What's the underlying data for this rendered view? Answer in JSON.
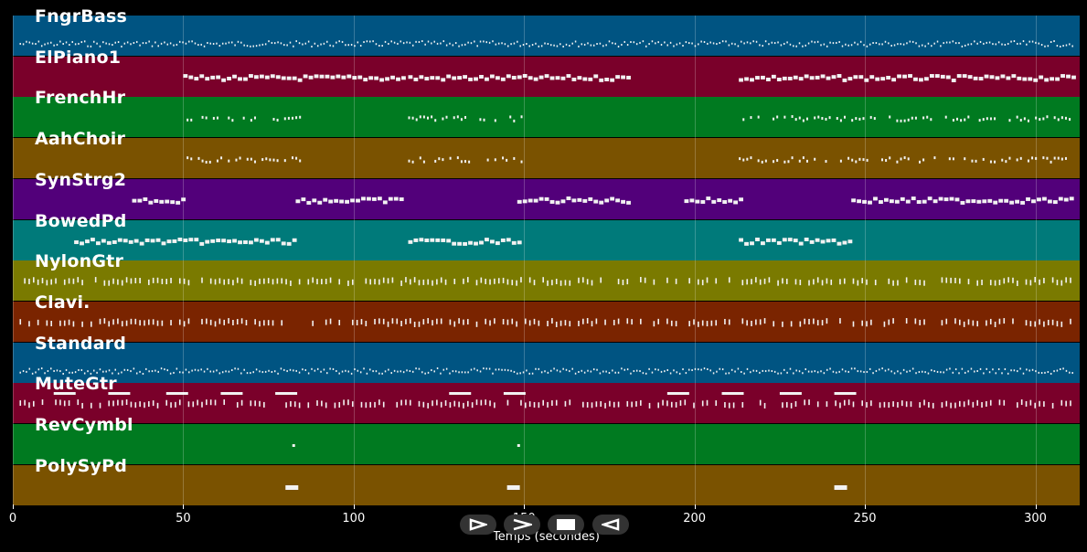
{
  "timeline": {
    "tracks": [
      {
        "name": "FngrBass",
        "color": "#005482",
        "style": "dense"
      },
      {
        "name": "ElPiano1",
        "color": "#7a002a",
        "style": "block"
      },
      {
        "name": "FrenchHr",
        "color": "#007a20",
        "style": "sparse"
      },
      {
        "name": "AahChoir",
        "color": "#7a5200",
        "style": "sparse"
      },
      {
        "name": "SynStrg2",
        "color": "#52007a",
        "style": "block"
      },
      {
        "name": "BowedPd",
        "color": "#007a7a",
        "style": "block"
      },
      {
        "name": "NylonGtr",
        "color": "#7a7a00",
        "style": "ticks"
      },
      {
        "name": "Clavi.",
        "color": "#7a2400",
        "style": "ticks"
      },
      {
        "name": "Standard",
        "color": "#005482",
        "style": "dense"
      },
      {
        "name": "MuteGtr",
        "color": "#7a002a",
        "style": "ticks"
      },
      {
        "name": "RevCymbl",
        "color": "#007a20",
        "style": "dots"
      },
      {
        "name": "PolySyPd",
        "color": "#7a5200",
        "style": "dots"
      }
    ],
    "x_ticks": [
      "0",
      "50",
      "100",
      "150",
      "200",
      "250",
      "300"
    ],
    "x_label": "Temps (secondes)",
    "x_max_seconds": 313
  },
  "controls": [
    {
      "icon": "play-icon"
    },
    {
      "icon": "fast-forward-icon"
    },
    {
      "icon": "stop-icon"
    },
    {
      "icon": "rewind-icon"
    }
  ]
}
